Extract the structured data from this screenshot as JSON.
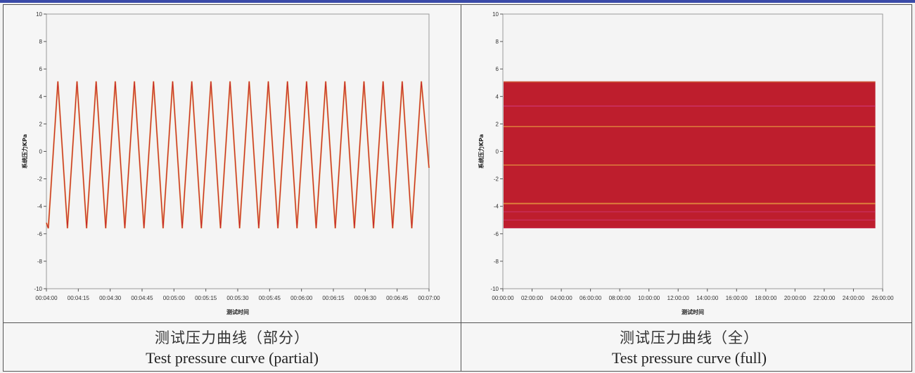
{
  "colors": {
    "plot_background": "#f4f4f4",
    "line_red": "#c4232c",
    "line_orange": "#e8a040",
    "fill_red": "#be1e2d",
    "fill_magenta": "#cc3366"
  },
  "chart_data": [
    {
      "type": "line",
      "title": "",
      "xlabel": "测试时间",
      "ylabel": "系统压力KPa",
      "ylim": [
        -10,
        10
      ],
      "y_ticks": [
        "10",
        "8",
        "6",
        "4",
        "2",
        "0",
        "-2",
        "-4",
        "-6",
        "-8",
        "-10"
      ],
      "x_ticks": [
        "00:04:00",
        "00:04:15",
        "00:04:30",
        "00:04:45",
        "00:05:00",
        "00:05:15",
        "00:05:30",
        "00:05:45",
        "00:06:00",
        "00:06:15",
        "00:06:30",
        "00:06:45",
        "00:07:00"
      ],
      "xlim": [
        "00:04:00",
        "00:07:00"
      ],
      "series": [
        {
          "waveform": "triangle",
          "max": 5.1,
          "min": -5.6,
          "cycles": 20,
          "start_value": -5.2,
          "end_value": -1.2
        }
      ]
    },
    {
      "type": "area",
      "title": "",
      "xlabel": "测试时间",
      "ylabel": "系统压力KPa",
      "ylim": [
        -10,
        10
      ],
      "y_ticks": [
        "10",
        "8",
        "6",
        "4",
        "2",
        "0",
        "-2",
        "-4",
        "-6",
        "-8",
        "-10"
      ],
      "x_ticks": [
        "00:00:00",
        "02:00:00",
        "04:00:00",
        "06:00:00",
        "08:00:00",
        "10:00:00",
        "12:00:00",
        "14:00:00",
        "16:00:00",
        "18:00:00",
        "20:00:00",
        "22:00:00",
        "24:00:00",
        "26:00:00"
      ],
      "xlim": [
        "00:00:00",
        "26:00:00"
      ],
      "series": [
        {
          "waveform": "dense oscillation",
          "max": 5.1,
          "min": -5.6,
          "x_end": "25:30:00"
        }
      ]
    }
  ],
  "captions": {
    "left_zh": "测试压力曲线（部分）",
    "left_en": "Test pressure curve (partial)",
    "right_zh": "测试压力曲线（全）",
    "right_en": "Test pressure curve (full)"
  }
}
